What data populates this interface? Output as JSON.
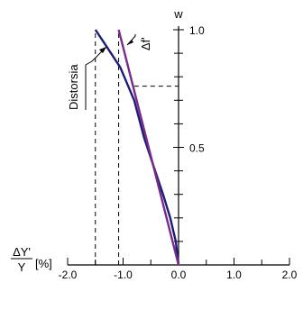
{
  "chart_data": {
    "type": "line",
    "x_axis": {
      "range": [
        -2.0,
        2.0
      ],
      "tick_labels": [
        "-2.0",
        "-1.0",
        "0.0",
        "1.0",
        "2.0"
      ],
      "label_numerator": "ΔY'",
      "label_denominator": "Y",
      "label_unit": "[%]"
    },
    "y_axis": {
      "label": "w",
      "range": [
        0,
        1.0
      ],
      "tick_labels": [
        "0.5",
        "1.0"
      ]
    },
    "grid": false,
    "series": [
      {
        "name": "Distorsia",
        "color": "#1c1c7a",
        "x": [
          0.0,
          -0.05,
          -0.15,
          -0.28,
          -0.45,
          -0.62,
          -0.8,
          -1.05,
          -1.3,
          -1.5
        ],
        "y": [
          0.0,
          0.1,
          0.2,
          0.3,
          0.42,
          0.54,
          0.7,
          0.84,
          0.93,
          1.0
        ]
      },
      {
        "name": "Δf'",
        "color": "#7a2a8a",
        "x": [
          0.0,
          -1.08
        ],
        "y": [
          0.0,
          1.0
        ]
      }
    ],
    "reference_lines": [
      {
        "x": -1.5,
        "y_from": 0,
        "y_to": 1.0
      },
      {
        "x": -1.08,
        "y_from": 0,
        "y_to": 1.0
      },
      {
        "x_from": -0.8,
        "x_to": 0.0,
        "y": 0.76
      }
    ]
  }
}
